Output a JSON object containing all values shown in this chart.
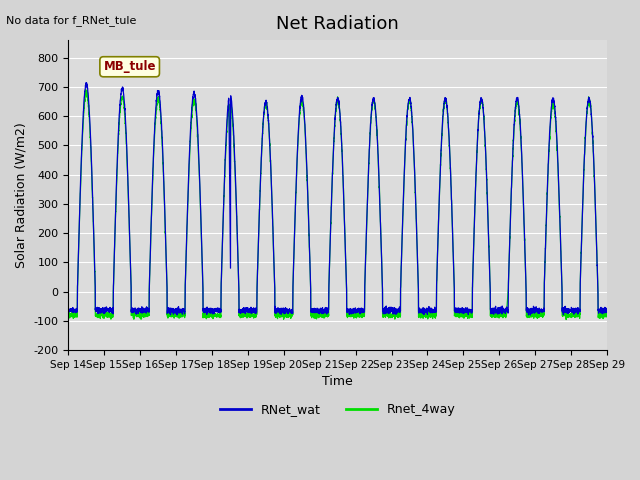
{
  "title": "Net Radiation",
  "xlabel": "Time",
  "ylabel": "Solar Radiation (W/m2)",
  "ylim": [
    -200,
    860
  ],
  "yticks": [
    -200,
    -100,
    0,
    100,
    200,
    300,
    400,
    500,
    600,
    700,
    800
  ],
  "no_data_text": "No data for f_RNet_tule",
  "mb_tule_label": "MB_tule",
  "legend_labels": [
    "RNet_wat",
    "Rnet_4way"
  ],
  "line_colors": [
    "#0000cc",
    "#00dd00"
  ],
  "num_days": 15,
  "tick_labels": [
    "Sep 14",
    "Sep 15",
    "Sep 16",
    "Sep 17",
    "Sep 18",
    "Sep 19",
    "Sep 20",
    "Sep 21",
    "Sep 22",
    "Sep 23",
    "Sep 24",
    "Sep 25",
    "Sep 26",
    "Sep 27",
    "Sep 28",
    "Sep 29"
  ],
  "peak_blue": [
    710,
    695,
    685,
    680,
    675,
    650,
    665,
    660,
    660,
    660,
    660,
    660,
    660,
    660,
    660
  ],
  "peak_green": [
    680,
    665,
    660,
    655,
    650,
    645,
    650,
    655,
    655,
    655,
    655,
    655,
    650,
    640,
    655
  ],
  "night_val_blue": -65,
  "night_val_green": -80
}
